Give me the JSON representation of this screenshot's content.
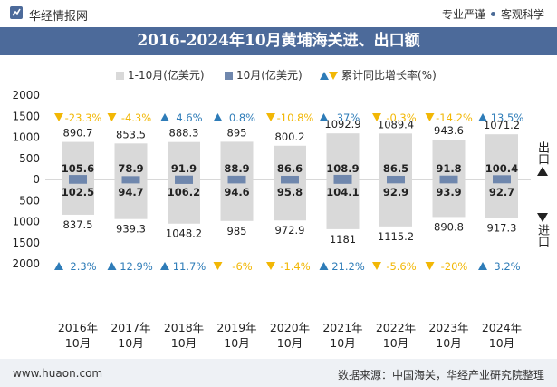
{
  "header": {
    "brand": "华经情报网",
    "tagline_left": "专业严谨",
    "tagline_right": "客观科学"
  },
  "footer": {
    "url": "www.huaon.com",
    "source": "数据来源：中国海关，华经产业研究院整理"
  },
  "side": {
    "export_label": "出口",
    "import_label": "进口"
  },
  "colors": {
    "title_bg": "#4c6a9a",
    "cumulative_bar": "#d9d9d9",
    "monthly_bar": "#6f87ad",
    "growth_up": "#2e7cb8",
    "growth_down": "#f2b705"
  },
  "chart_data": {
    "type": "bar",
    "title": "2016-2024年10月黄埔海关进、出口额",
    "legend": {
      "cumulative": "1-10月(亿美元)",
      "monthly": "10月(亿美元)",
      "growth": "累计同比增长率(%)"
    },
    "categories": [
      "2016年\n10月",
      "2017年\n10月",
      "2018年\n10月",
      "2019年\n10月",
      "2020年\n10月",
      "2021年\n10月",
      "2022年\n10月",
      "2023年\n10月",
      "2024年\n10月"
    ],
    "yticks": [
      "2000",
      "1500",
      "1000",
      "500",
      "0",
      "500",
      "1000",
      "1500",
      "2000"
    ],
    "ylim": [
      -2000,
      2000
    ],
    "export": {
      "cumulative": [
        890.7,
        853.5,
        888.3,
        895,
        800.2,
        1092.9,
        1089.4,
        943.6,
        1071.2
      ],
      "monthly": [
        105.6,
        78.9,
        91.9,
        88.9,
        86.6,
        108.9,
        86.5,
        91.8,
        100.4
      ],
      "growth": [
        "-23.3%",
        "-4.3%",
        "4.6%",
        "0.8%",
        "-10.8%",
        "37%",
        "-0.3%",
        "-14.2%",
        "13.5%"
      ],
      "growth_dir": [
        "down",
        "down",
        "up",
        "up",
        "down",
        "up",
        "down",
        "down",
        "up"
      ]
    },
    "import": {
      "cumulative": [
        837.5,
        939.3,
        1048.2,
        985,
        972.9,
        1181,
        1115.2,
        890.8,
        917.3
      ],
      "monthly": [
        102.5,
        94.7,
        106.2,
        94.6,
        95.8,
        104.1,
        92.9,
        93.9,
        92.7
      ],
      "growth": [
        "2.3%",
        "12.9%",
        "11.7%",
        "-6%",
        "-1.4%",
        "21.2%",
        "-5.6%",
        "-20%",
        "3.2%"
      ],
      "growth_dir": [
        "up",
        "up",
        "up",
        "down",
        "down",
        "up",
        "down",
        "down",
        "up"
      ]
    }
  }
}
